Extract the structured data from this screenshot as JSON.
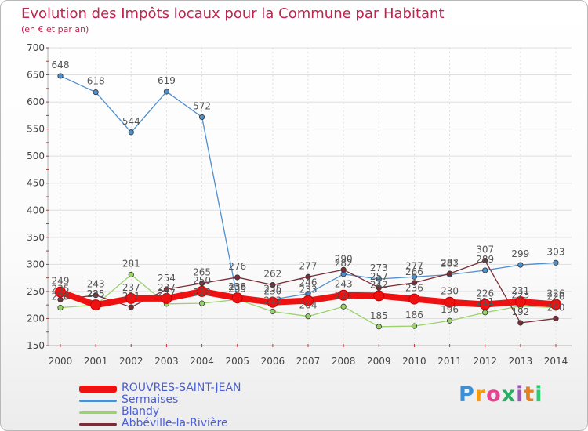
{
  "header": {
    "title": "Evolution des Impôts locaux pour la Commune par Habitant",
    "subtitle": "(en € et par an)"
  },
  "brand": {
    "text": "Proxiti"
  },
  "chart_data": {
    "type": "line",
    "title": "Evolution des Impôts locaux pour la Commune par Habitant",
    "subtitle": "(en € et par an)",
    "xlabel": "",
    "ylabel": "",
    "ylim": [
      150,
      700
    ],
    "yticks": [
      150,
      200,
      250,
      300,
      350,
      400,
      450,
      500,
      550,
      600,
      650,
      700
    ],
    "grid": true,
    "legend_position": "bottom-left",
    "categories": [
      "2000",
      "2001",
      "2002",
      "2003",
      "2004",
      "2005",
      "2006",
      "2007",
      "2008",
      "2009",
      "2010",
      "2011",
      "2012",
      "2013",
      "2014"
    ],
    "series": [
      {
        "name": "Sermaises",
        "color": "#4f8fcc",
        "labeled": true,
        "values": [
          648,
          618,
          544,
          619,
          572,
          238,
          235,
          246,
          282,
          273,
          277,
          281,
          289,
          299,
          303
        ]
      },
      {
        "name": "Blandy",
        "color": "#99d36a",
        "labeled": true,
        "values": [
          220,
          225,
          281,
          227,
          228,
          235,
          213,
          204,
          222,
          185,
          186,
          196,
          211,
          223,
          220
        ]
      },
      {
        "name": "Abbéville-la-Rivière",
        "color": "#7a2c37",
        "labeled": true,
        "values": [
          235,
          243,
          221,
          254,
          265,
          276,
          262,
          277,
          290,
          257,
          266,
          283,
          307,
          192,
          200
        ]
      },
      {
        "name": "ROUVRES-SAINT-JEAN",
        "color": "#ee1111",
        "labeled": true,
        "values": [
          249,
          225,
          237,
          237,
          250,
          238,
          230,
          233,
          243,
          242,
          236,
          230,
          226,
          231,
          226
        ]
      }
    ],
    "legend_order": [
      "ROUVRES-SAINT-JEAN",
      "Sermaises",
      "Blandy",
      "Abbéville-la-Rivière"
    ]
  }
}
